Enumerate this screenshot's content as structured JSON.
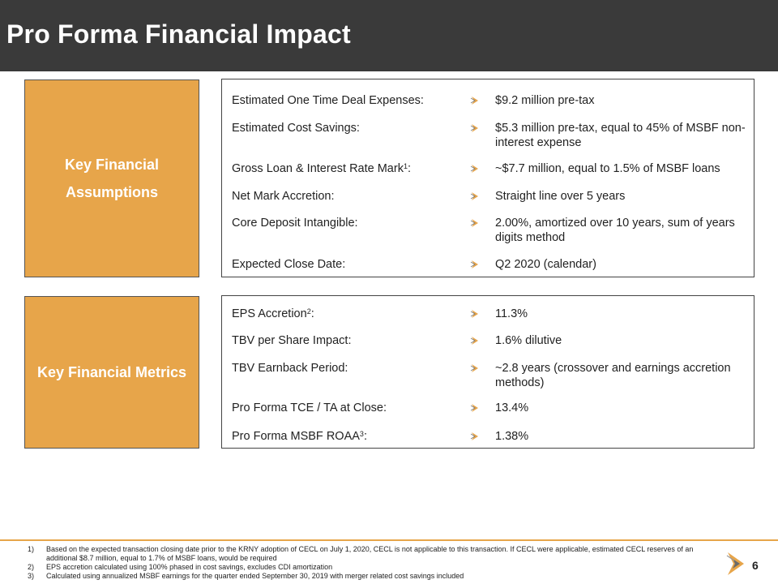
{
  "title": "Pro Forma Financial Impact",
  "section1": {
    "heading_line1": "Key Financial",
    "heading_line2": "Assumptions",
    "rows": [
      {
        "label": "Estimated One Time Deal Expenses:",
        "value": "$9.2 million pre-tax"
      },
      {
        "label": "Estimated Cost Savings:",
        "value": "$5.3 million pre-tax, equal to 45% of MSBF non-interest expense"
      },
      {
        "label": "Gross Loan & Interest Rate Mark",
        "sup": "1",
        "suffix": ":",
        "value": "~$7.7 million, equal to 1.5% of MSBF loans"
      },
      {
        "label": "Net Mark Accretion:",
        "value": "Straight line over 5 years"
      },
      {
        "label": "Core Deposit Intangible:",
        "value": "2.00%, amortized over 10 years, sum of years digits method"
      },
      {
        "label": "Expected Close Date:",
        "value": "Q2 2020 (calendar)"
      }
    ]
  },
  "section2": {
    "heading": "Key Financial Metrics",
    "rows": [
      {
        "label": "EPS Accretion",
        "sup": "2",
        "suffix": ":",
        "value": "11.3%"
      },
      {
        "label": "TBV per Share Impact:",
        "value": "1.6% dilutive"
      },
      {
        "label": "TBV Earnback Period:",
        "value": "~2.8 years (crossover and earnings accretion methods)"
      },
      {
        "label": "Pro Forma TCE / TA at Close:",
        "value": "13.4%"
      },
      {
        "label": "Pro Forma MSBF ROAA",
        "sup": "3",
        "suffix": ":",
        "value": "1.38%"
      }
    ]
  },
  "footnotes": [
    {
      "num": "1)",
      "text": "Based on the expected transaction closing date prior to the KRNY adoption of CECL on July 1, 2020, CECL is not applicable to this transaction.  If CECL were applicable, estimated CECL reserves of an additional $8.7 million, equal to 1.7% of MSBF loans, would be required"
    },
    {
      "num": "2)",
      "text": "EPS accretion calculated using 100% phased in cost savings, excludes CDI amortization"
    },
    {
      "num": "3)",
      "text": "Calculated using annualized MSBF earnings for the quarter ended September 30, 2019 with merger related cost savings included"
    }
  ],
  "page_number": "6",
  "colors": {
    "accent": "#e7a54a",
    "title_bar": "#3a3a3a",
    "arrow": "#e7a54a"
  }
}
